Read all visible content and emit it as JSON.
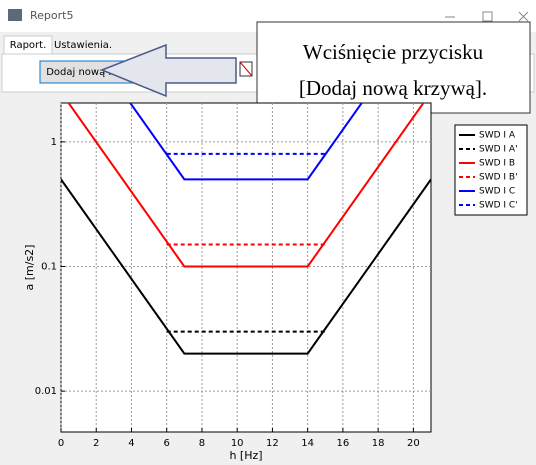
{
  "window": {
    "title": "Report5"
  },
  "tabs": [
    "Raport.",
    "Ustawienia."
  ],
  "toolbar": {
    "button": "Dodaj nową krzywą"
  },
  "callout": {
    "lines": [
      "Wciśnięcie przycisku",
      "[Dodaj nową krzywą]."
    ]
  },
  "chart_data": {
    "type": "line",
    "x_label": "h [Hz]",
    "y_label": "a [m/s2]",
    "xlim": [
      0,
      21
    ],
    "xticks": [
      0,
      2,
      4,
      6,
      8,
      10,
      12,
      14,
      16,
      18,
      20
    ],
    "ylim": [
      0.0047,
      2.05
    ],
    "yticks": [
      0.01,
      0.1,
      1
    ],
    "y_scale": "log",
    "grid": true,
    "legend": "right",
    "series": [
      {
        "name": "SWD I A",
        "color": "#000000",
        "linestyle": "solid",
        "x": [
          0,
          7,
          14,
          21
        ],
        "values": [
          0.5,
          0.02,
          0.02,
          0.5
        ]
      },
      {
        "name": "SWD I A'",
        "color": "#000000",
        "linestyle": "dashed",
        "x": [
          6,
          15
        ],
        "values": [
          0.03,
          0.03
        ]
      },
      {
        "name": "SWD I B",
        "color": "#ff0000",
        "linestyle": "solid",
        "x": [
          0,
          7,
          14,
          21
        ],
        "values": [
          2.5,
          0.1,
          0.1,
          2.5
        ]
      },
      {
        "name": "SWD I B'",
        "color": "#ff0000",
        "linestyle": "dashed",
        "x": [
          6,
          15
        ],
        "values": [
          0.15,
          0.15
        ]
      },
      {
        "name": "SWD I C",
        "color": "#0000ff",
        "linestyle": "solid",
        "x": [
          0,
          7,
          14,
          21
        ],
        "values": [
          12.5,
          0.5,
          0.5,
          12.5
        ]
      },
      {
        "name": "SWD I C'",
        "color": "#0000ff",
        "linestyle": "dashed",
        "x": [
          6,
          15
        ],
        "values": [
          0.8,
          0.8
        ]
      }
    ]
  }
}
